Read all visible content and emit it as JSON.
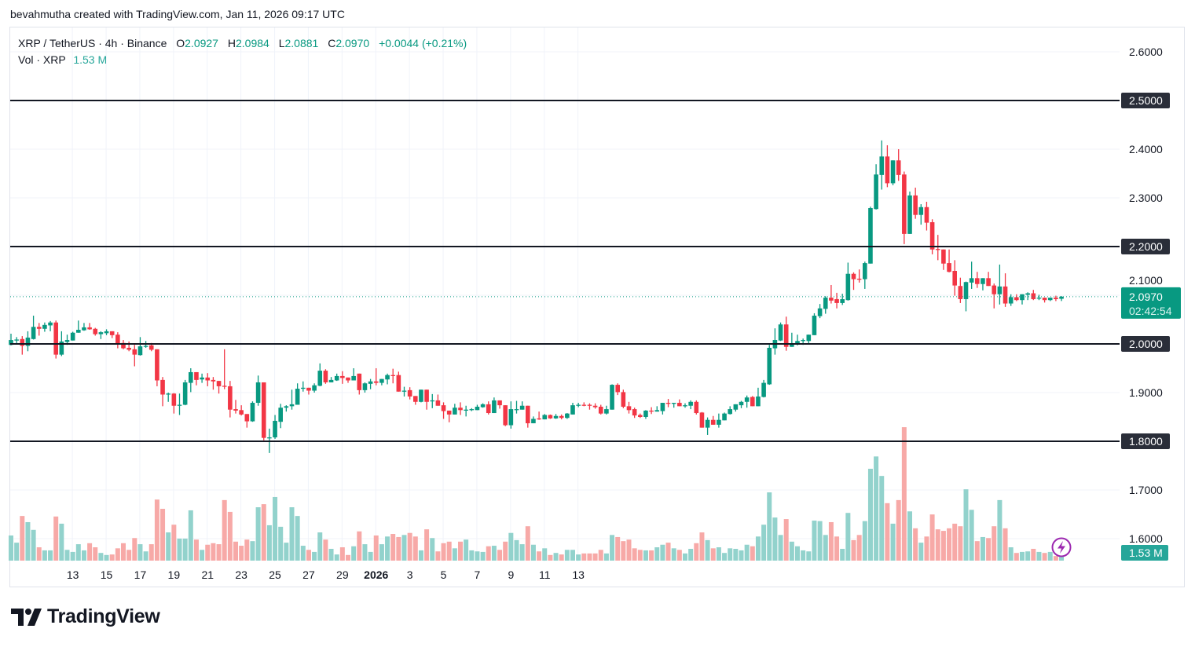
{
  "credit": "bevahmutha created with TradingView.com, Jan 11, 2026 09:17 UTC",
  "legend": {
    "symbol": "XRP / TetherUS · 4h · Binance",
    "o_label": "O",
    "o": "2.0927",
    "h_label": "H",
    "h": "2.0984",
    "l_label": "L",
    "l": "2.0881",
    "c_label": "C",
    "c": "2.0970",
    "change": "+0.0044 (+0.21%)",
    "vol_label": "Vol · XRP",
    "vol": "1.53 M"
  },
  "price_label": {
    "value": "2.0970",
    "countdown": "02:42:54"
  },
  "volume_label": "1.53 M",
  "logo": "TradingView",
  "colors": {
    "up": "#089981",
    "down": "#f23645",
    "vol_up": "#92d2cc",
    "vol_down": "#f7a9a7",
    "line": "#131722",
    "alert_icon": "#9c27b0"
  },
  "icons": {
    "alert": "lightning-bolt-icon",
    "logo": "tradingview-logo-icon"
  },
  "chart_data": {
    "type": "candlestick",
    "interval": "4h",
    "ylim": [
      1.55,
      2.65
    ],
    "y_ticks": [
      "2.6000",
      "2.5000",
      "2.4000",
      "2.3000",
      "2.2000",
      "2.1000",
      "2.0000",
      "1.9000",
      "1.8000",
      "1.7000",
      "1.6000"
    ],
    "x_ticks": [
      "13",
      "15",
      "17",
      "19",
      "21",
      "23",
      "25",
      "27",
      "29",
      "2026",
      "3",
      "5",
      "7",
      "9",
      "11",
      "13"
    ],
    "x_ticks_bold": [
      "2026"
    ],
    "horizontal_lines": [
      2.5,
      2.2,
      2.0,
      1.8
    ],
    "horizontal_line_labels": [
      "2.5000",
      "2.2000",
      "2.0000",
      "1.8000"
    ],
    "last_price": 2.097,
    "grid": true,
    "volume_unit": "M",
    "ohlc": [
      [
        1.998,
        2.021,
        1.997,
        2.008
      ],
      [
        2.009,
        2.014,
        2.0,
        2.009
      ],
      [
        2.01,
        2.016,
        1.978,
        1.996
      ],
      [
        1.996,
        2.026,
        1.985,
        2.013
      ],
      [
        2.01,
        2.058,
        2.009,
        2.035
      ],
      [
        2.035,
        2.043,
        2.017,
        2.031
      ],
      [
        2.031,
        2.044,
        2.025,
        2.039
      ],
      [
        2.038,
        2.047,
        2.026,
        2.044
      ],
      [
        2.044,
        2.048,
        1.97,
        1.978
      ],
      [
        1.978,
        2.026,
        1.975,
        2.005
      ],
      [
        2.004,
        2.019,
        1.998,
        2.008
      ],
      [
        2.007,
        2.025,
        2.007,
        2.023
      ],
      [
        2.023,
        2.048,
        2.023,
        2.029
      ],
      [
        2.028,
        2.043,
        2.027,
        2.034
      ],
      [
        2.034,
        2.043,
        2.029,
        2.03
      ],
      [
        2.031,
        2.033,
        2.017,
        2.02
      ],
      [
        2.02,
        2.026,
        2.01,
        2.024
      ],
      [
        2.022,
        2.03,
        2.018,
        2.026
      ],
      [
        2.026,
        2.026,
        2.012,
        2.018
      ],
      [
        2.019,
        2.024,
        1.991,
        2.001
      ],
      [
        2.002,
        2.008,
        1.989,
        1.991
      ],
      [
        1.992,
        2.005,
        1.985,
        1.988
      ],
      [
        1.989,
        1.998,
        1.954,
        1.978
      ],
      [
        1.977,
        2.014,
        1.976,
        1.995
      ],
      [
        1.995,
        2.006,
        1.992,
        1.996
      ],
      [
        1.997,
        2.002,
        1.985,
        1.988
      ],
      [
        1.989,
        1.989,
        1.913,
        1.925
      ],
      [
        1.926,
        1.932,
        1.872,
        1.896
      ],
      [
        1.896,
        1.9,
        1.881,
        1.898
      ],
      [
        1.898,
        1.899,
        1.857,
        1.873
      ],
      [
        1.873,
        1.898,
        1.854,
        1.875
      ],
      [
        1.875,
        1.926,
        1.874,
        1.921
      ],
      [
        1.92,
        1.95,
        1.901,
        1.942
      ],
      [
        1.942,
        1.942,
        1.915,
        1.926
      ],
      [
        1.927,
        1.939,
        1.92,
        1.931
      ],
      [
        1.931,
        1.94,
        1.913,
        1.925
      ],
      [
        1.926,
        1.932,
        1.906,
        1.923
      ],
      [
        1.924,
        1.924,
        1.898,
        1.913
      ],
      [
        1.914,
        1.989,
        1.907,
        1.912
      ],
      [
        1.913,
        1.924,
        1.849,
        1.865
      ],
      [
        1.866,
        1.885,
        1.857,
        1.863
      ],
      [
        1.864,
        1.874,
        1.853,
        1.855
      ],
      [
        1.856,
        1.856,
        1.828,
        1.841
      ],
      [
        1.841,
        1.882,
        1.84,
        1.879
      ],
      [
        1.879,
        1.935,
        1.873,
        1.921
      ],
      [
        1.921,
        1.921,
        1.802,
        1.807
      ],
      [
        1.807,
        1.826,
        1.776,
        1.808
      ],
      [
        1.808,
        1.854,
        1.805,
        1.842
      ],
      [
        1.84,
        1.877,
        1.827,
        1.869
      ],
      [
        1.869,
        1.874,
        1.861,
        1.872
      ],
      [
        1.872,
        1.906,
        1.865,
        1.876
      ],
      [
        1.875,
        1.919,
        1.875,
        1.908
      ],
      [
        1.909,
        1.923,
        1.902,
        1.91
      ],
      [
        1.91,
        1.91,
        1.896,
        1.904
      ],
      [
        1.904,
        1.919,
        1.9,
        1.915
      ],
      [
        1.914,
        1.96,
        1.913,
        1.945
      ],
      [
        1.945,
        1.948,
        1.918,
        1.921
      ],
      [
        1.921,
        1.932,
        1.921,
        1.926
      ],
      [
        1.925,
        1.939,
        1.924,
        1.934
      ],
      [
        1.934,
        1.944,
        1.918,
        1.93
      ],
      [
        1.931,
        1.931,
        1.92,
        1.925
      ],
      [
        1.925,
        1.95,
        1.925,
        1.934
      ],
      [
        1.939,
        1.939,
        1.896,
        1.905
      ],
      [
        1.905,
        1.921,
        1.9,
        1.919
      ],
      [
        1.918,
        1.928,
        1.907,
        1.923
      ],
      [
        1.923,
        1.95,
        1.915,
        1.92
      ],
      [
        1.92,
        1.928,
        1.915,
        1.928
      ],
      [
        1.927,
        1.939,
        1.917,
        1.936
      ],
      [
        1.936,
        1.949,
        1.919,
        1.935
      ],
      [
        1.936,
        1.943,
        1.902,
        1.902
      ],
      [
        1.902,
        1.912,
        1.892,
        1.904
      ],
      [
        1.905,
        1.911,
        1.886,
        1.892
      ],
      [
        1.893,
        1.893,
        1.875,
        1.881
      ],
      [
        1.881,
        1.906,
        1.88,
        1.906
      ],
      [
        1.906,
        1.906,
        1.865,
        1.881
      ],
      [
        1.882,
        1.897,
        1.868,
        1.884
      ],
      [
        1.884,
        1.896,
        1.873,
        1.873
      ],
      [
        1.874,
        1.88,
        1.846,
        1.862
      ],
      [
        1.863,
        1.863,
        1.839,
        1.855
      ],
      [
        1.855,
        1.877,
        1.855,
        1.869
      ],
      [
        1.869,
        1.88,
        1.854,
        1.864
      ],
      [
        1.865,
        1.873,
        1.851,
        1.865
      ],
      [
        1.865,
        1.868,
        1.862,
        1.866
      ],
      [
        1.864,
        1.875,
        1.864,
        1.871
      ],
      [
        1.87,
        1.878,
        1.869,
        1.876
      ],
      [
        1.876,
        1.882,
        1.855,
        1.858
      ],
      [
        1.858,
        1.89,
        1.858,
        1.884
      ],
      [
        1.884,
        1.884,
        1.867,
        1.874
      ],
      [
        1.874,
        1.874,
        1.831,
        1.833
      ],
      [
        1.833,
        1.882,
        1.826,
        1.866
      ],
      [
        1.866,
        1.883,
        1.857,
        1.866
      ],
      [
        1.865,
        1.882,
        1.865,
        1.873
      ],
      [
        1.873,
        1.873,
        1.828,
        1.837
      ],
      [
        1.837,
        1.851,
        1.837,
        1.846
      ],
      [
        1.847,
        1.861,
        1.844,
        1.845
      ],
      [
        1.845,
        1.856,
        1.845,
        1.854
      ],
      [
        1.854,
        1.855,
        1.846,
        1.847
      ],
      [
        1.847,
        1.856,
        1.846,
        1.852
      ],
      [
        1.852,
        1.855,
        1.845,
        1.848
      ],
      [
        1.848,
        1.858,
        1.846,
        1.857
      ],
      [
        1.855,
        1.879,
        1.855,
        1.874
      ],
      [
        1.874,
        1.879,
        1.87,
        1.875
      ],
      [
        1.875,
        1.88,
        1.872,
        1.874
      ],
      [
        1.875,
        1.878,
        1.865,
        1.874
      ],
      [
        1.873,
        1.878,
        1.867,
        1.87
      ],
      [
        1.871,
        1.875,
        1.855,
        1.857
      ],
      [
        1.857,
        1.873,
        1.855,
        1.866
      ],
      [
        1.865,
        1.917,
        1.865,
        1.916
      ],
      [
        1.916,
        1.919,
        1.895,
        1.901
      ],
      [
        1.901,
        1.906,
        1.868,
        1.871
      ],
      [
        1.872,
        1.881,
        1.857,
        1.864
      ],
      [
        1.866,
        1.869,
        1.848,
        1.853
      ],
      [
        1.854,
        1.857,
        1.848,
        1.85
      ],
      [
        1.85,
        1.864,
        1.846,
        1.863
      ],
      [
        1.863,
        1.87,
        1.856,
        1.862
      ],
      [
        1.861,
        1.872,
        1.861,
        1.864
      ],
      [
        1.862,
        1.879,
        1.855,
        1.879
      ],
      [
        1.879,
        1.887,
        1.87,
        1.878
      ],
      [
        1.878,
        1.879,
        1.869,
        1.879
      ],
      [
        1.879,
        1.886,
        1.872,
        1.872
      ],
      [
        1.873,
        1.878,
        1.869,
        1.874
      ],
      [
        1.873,
        1.884,
        1.866,
        1.881
      ],
      [
        1.881,
        1.884,
        1.855,
        1.858
      ],
      [
        1.859,
        1.86,
        1.828,
        1.828
      ],
      [
        1.828,
        1.849,
        1.813,
        1.844
      ],
      [
        1.844,
        1.852,
        1.834,
        1.834
      ],
      [
        1.834,
        1.857,
        1.828,
        1.844
      ],
      [
        1.843,
        1.859,
        1.843,
        1.857
      ],
      [
        1.856,
        1.872,
        1.855,
        1.866
      ],
      [
        1.865,
        1.876,
        1.861,
        1.876
      ],
      [
        1.874,
        1.883,
        1.868,
        1.881
      ],
      [
        1.881,
        1.894,
        1.869,
        1.89
      ],
      [
        1.891,
        1.893,
        1.872,
        1.872
      ],
      [
        1.872,
        1.91,
        1.872,
        1.892
      ],
      [
        1.891,
        1.926,
        1.89,
        1.92
      ],
      [
        1.917,
        1.998,
        1.916,
        1.992
      ],
      [
        1.991,
        2.032,
        1.978,
        2.008
      ],
      [
        2.007,
        2.044,
        2.006,
        2.04
      ],
      [
        2.04,
        2.056,
        1.986,
        1.994
      ],
      [
        1.994,
        2.023,
        1.994,
        2.001
      ],
      [
        2.0,
        2.019,
        1.997,
        2.006
      ],
      [
        2.007,
        2.011,
        1.998,
        2.008
      ],
      [
        2.006,
        2.019,
        2.001,
        2.019
      ],
      [
        2.018,
        2.063,
        2.018,
        2.058
      ],
      [
        2.057,
        2.082,
        2.053,
        2.073
      ],
      [
        2.072,
        2.098,
        2.062,
        2.095
      ],
      [
        2.095,
        2.121,
        2.083,
        2.089
      ],
      [
        2.092,
        2.105,
        2.073,
        2.084
      ],
      [
        2.084,
        2.103,
        2.08,
        2.092
      ],
      [
        2.09,
        2.167,
        2.089,
        2.144
      ],
      [
        2.144,
        2.147,
        2.111,
        2.133
      ],
      [
        2.134,
        2.153,
        2.126,
        2.133
      ],
      [
        2.133,
        2.169,
        2.113,
        2.166
      ],
      [
        2.165,
        2.282,
        2.165,
        2.279
      ],
      [
        2.277,
        2.369,
        2.276,
        2.348
      ],
      [
        2.347,
        2.418,
        2.317,
        2.385
      ],
      [
        2.385,
        2.408,
        2.322,
        2.33
      ],
      [
        2.33,
        2.377,
        2.326,
        2.377
      ],
      [
        2.377,
        2.4,
        2.335,
        2.347
      ],
      [
        2.348,
        2.354,
        2.205,
        2.226
      ],
      [
        2.226,
        2.313,
        2.226,
        2.305
      ],
      [
        2.305,
        2.321,
        2.257,
        2.265
      ],
      [
        2.265,
        2.287,
        2.245,
        2.281
      ],
      [
        2.281,
        2.292,
        2.233,
        2.249
      ],
      [
        2.25,
        2.256,
        2.184,
        2.194
      ],
      [
        2.195,
        2.224,
        2.172,
        2.194
      ],
      [
        2.194,
        2.194,
        2.152,
        2.165
      ],
      [
        2.166,
        2.194,
        2.147,
        2.148
      ],
      [
        2.15,
        2.172,
        2.099,
        2.12
      ],
      [
        2.119,
        2.136,
        2.084,
        2.092
      ],
      [
        2.092,
        2.128,
        2.067,
        2.127
      ],
      [
        2.126,
        2.169,
        2.113,
        2.135
      ],
      [
        2.135,
        2.148,
        2.115,
        2.123
      ],
      [
        2.123,
        2.135,
        2.11,
        2.135
      ],
      [
        2.135,
        2.148,
        2.119,
        2.119
      ],
      [
        2.12,
        2.124,
        2.073,
        2.102
      ],
      [
        2.102,
        2.163,
        2.081,
        2.118
      ],
      [
        2.118,
        2.145,
        2.076,
        2.083
      ],
      [
        2.083,
        2.102,
        2.078,
        2.096
      ],
      [
        2.096,
        2.102,
        2.088,
        2.09
      ],
      [
        2.09,
        2.102,
        2.081,
        2.102
      ],
      [
        2.101,
        2.106,
        2.09,
        2.104
      ],
      [
        2.104,
        2.111,
        2.09,
        2.092
      ],
      [
        2.095,
        2.101,
        2.09,
        2.095
      ],
      [
        2.095,
        2.095,
        2.085,
        2.09
      ],
      [
        2.09,
        2.095,
        2.088,
        2.095
      ],
      [
        2.095,
        2.099,
        2.088,
        2.092
      ],
      [
        2.0927,
        2.0984,
        2.0881,
        2.097
      ]
    ],
    "volume": [
      4.9,
      3.5,
      8.7,
      7.5,
      6.0,
      2.6,
      2.0,
      2.0,
      8.6,
      7.2,
      2.1,
      1.7,
      3.2,
      2.0,
      3.4,
      2.6,
      1.5,
      1.1,
      1.2,
      2.4,
      3.4,
      2.1,
      4.4,
      3.2,
      1.8,
      3.2,
      11.9,
      10.1,
      5.5,
      7.0,
      4.3,
      4.3,
      9.8,
      4.1,
      2.1,
      3.1,
      3.4,
      3.2,
      11.8,
      9.5,
      3.7,
      2.9,
      4.1,
      3.8,
      10.4,
      11.0,
      6.9,
      12.4,
      6.6,
      3.5,
      10.4,
      8.7,
      2.9,
      2.1,
      1.7,
      5.5,
      4.1,
      2.3,
      1.2,
      2.6,
      1.1,
      2.8,
      5.7,
      3.2,
      1.7,
      4.9,
      3.2,
      4.7,
      5.2,
      4.6,
      5.0,
      5.4,
      4.7,
      2.0,
      6.1,
      4.4,
      1.8,
      3.4,
      3.7,
      2.4,
      3.7,
      4.1,
      2.0,
      1.8,
      1.7,
      2.8,
      2.9,
      2.1,
      3.7,
      5.4,
      4.0,
      3.2,
      6.7,
      3.1,
      1.8,
      2.4,
      1.1,
      1.5,
      1.2,
      2.1,
      2.1,
      1.2,
      1.4,
      1.4,
      1.4,
      2.1,
      1.4,
      5.0,
      4.6,
      3.8,
      4.1,
      2.4,
      2.1,
      2.0,
      2.0,
      2.6,
      3.1,
      3.5,
      2.4,
      2.1,
      1.4,
      2.3,
      3.4,
      5.5,
      4.0,
      2.4,
      2.6,
      1.5,
      2.4,
      2.3,
      2.0,
      3.1,
      2.8,
      4.7,
      7.0,
      13.3,
      8.4,
      5.0,
      8.1,
      3.7,
      2.8,
      2.0,
      1.8,
      7.8,
      7.7,
      5.0,
      7.5,
      4.7,
      2.3,
      9.3,
      4.0,
      5.0,
      7.7,
      17.9,
      20.3,
      16.5,
      11.2,
      7.2,
      11.8,
      26.0,
      9.6,
      6.3,
      3.5,
      4.7,
      9.0,
      6.1,
      5.8,
      6.3,
      7.2,
      6.7,
      13.9,
      9.9,
      3.8,
      4.6,
      4.4,
      6.7,
      11.8,
      6.3,
      2.6,
      1.5,
      1.7,
      1.8,
      2.3,
      1.7,
      1.5,
      1.7,
      0.9,
      1.53
    ]
  }
}
